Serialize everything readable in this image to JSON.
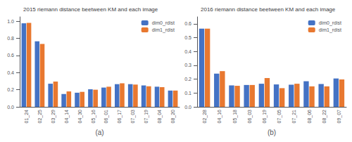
{
  "chart_data": [
    {
      "type": "bar",
      "title": "2015 riemann distance beetween KM and each image",
      "xlabel": "(a)",
      "categories": [
        "01_24",
        "02_25",
        "03_29",
        "04_14",
        "04_30",
        "05_16",
        "06_01",
        "06_17",
        "07_03",
        "07_19",
        "08_04",
        "08_20"
      ],
      "series": [
        {
          "name": "dim0_rdist",
          "color": "#4472c4",
          "values": [
            0.975,
            0.765,
            0.27,
            0.15,
            0.165,
            0.205,
            0.225,
            0.265,
            0.265,
            0.25,
            0.235,
            0.19
          ]
        },
        {
          "name": "dim1_rdist",
          "color": "#e87830",
          "values": [
            0.98,
            0.735,
            0.295,
            0.18,
            0.175,
            0.2,
            0.235,
            0.275,
            0.26,
            0.24,
            0.23,
            0.19
          ]
        }
      ],
      "ylim": [
        0,
        1.05
      ],
      "yticks": [
        {
          "value": 0,
          "label": "0.0"
        },
        {
          "value": 0.2,
          "label": "0.2"
        },
        {
          "value": 0.4,
          "label": "0.4"
        },
        {
          "value": 0.6,
          "label": "0.6"
        },
        {
          "value": 0.8,
          "label": "0.8"
        },
        {
          "value": 1.0,
          "label": "1.0"
        }
      ],
      "grid": false,
      "legend": "upper right"
    },
    {
      "type": "bar",
      "title": "2016 riemann distance beetween KM and each image",
      "xlabel": "(b)",
      "categories": [
        "02_28",
        "04_16",
        "05_18",
        "06_03",
        "06_19",
        "07_05",
        "07_21",
        "08_06",
        "08_22",
        "09_07"
      ],
      "series": [
        {
          "name": "dim0_rdist",
          "color": "#4472c4",
          "values": [
            0.565,
            0.24,
            0.155,
            0.158,
            0.167,
            0.162,
            0.16,
            0.185,
            0.165,
            0.205
          ]
        },
        {
          "name": "dim1_rdist",
          "color": "#e87830",
          "values": [
            0.565,
            0.258,
            0.152,
            0.158,
            0.208,
            0.135,
            0.167,
            0.148,
            0.148,
            0.198
          ]
        }
      ],
      "ylim": [
        0,
        0.65
      ],
      "yticks": [
        {
          "value": 0,
          "label": "0.0"
        },
        {
          "value": 0.1,
          "label": "0.1"
        },
        {
          "value": 0.2,
          "label": "0.2"
        },
        {
          "value": 0.3,
          "label": "0.3"
        },
        {
          "value": 0.4,
          "label": "0.4"
        },
        {
          "value": 0.5,
          "label": "0.5"
        },
        {
          "value": 0.6,
          "label": "0.6"
        }
      ],
      "grid": false,
      "legend": "upper right"
    }
  ]
}
